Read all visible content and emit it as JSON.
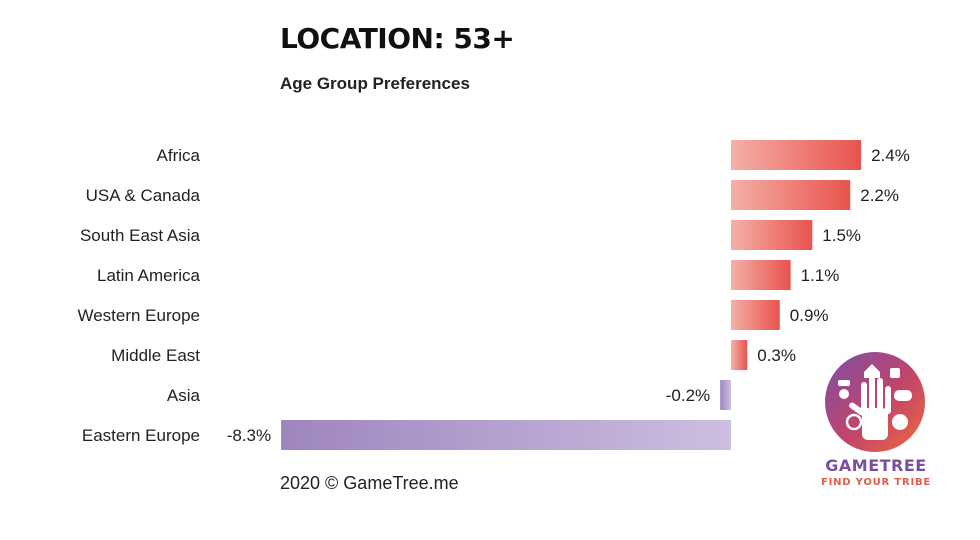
{
  "title": "LOCATION: 53+",
  "subtitle": "Age Group Preferences",
  "footer": "2020 © GameTree.me",
  "logo": {
    "name": "GAMETREE",
    "tagline": "FIND YOUR TRIBE"
  },
  "colors": {
    "positive_light": "#f4b0a7",
    "positive_dark": "#e8534d",
    "negative_light": "#cdbee0",
    "negative_dark": "#9e85bf"
  },
  "chart_data": {
    "type": "bar",
    "orientation": "horizontal",
    "categories": [
      "Africa",
      "USA & Canada",
      "South East Asia",
      "Latin America",
      "Western Europe",
      "Middle East",
      "Asia",
      "Eastern Europe"
    ],
    "values": [
      2.4,
      2.2,
      1.5,
      1.1,
      0.9,
      0.3,
      -0.2,
      -8.3
    ],
    "value_labels": [
      "2.4%",
      "2.2%",
      "1.5%",
      "1.1%",
      "0.9%",
      "0.3%",
      "-0.2%",
      "-8.3%"
    ],
    "title": "LOCATION: 53+",
    "subtitle": "Age Group Preferences",
    "xlabel": "",
    "ylabel": "",
    "unit": "%",
    "grid": false,
    "legend": "none"
  }
}
